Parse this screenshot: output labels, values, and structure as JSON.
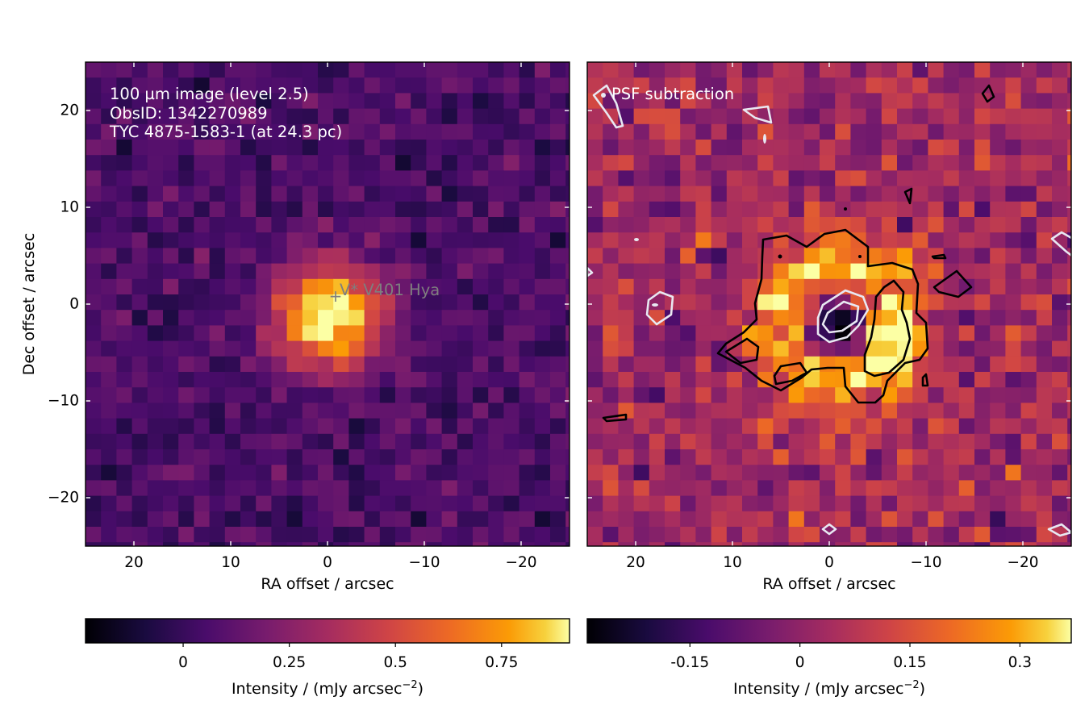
{
  "chart_data": [
    {
      "type": "heatmap",
      "panel": "left",
      "xlabel": "RA offset / arcsec",
      "ylabel": "Dec offset / arcsec",
      "xlim": [
        25,
        -25
      ],
      "ylim": [
        -25,
        25
      ],
      "xticks": [
        20,
        10,
        0,
        -10,
        -20
      ],
      "yticks": [
        20,
        10,
        0,
        -10,
        -20
      ],
      "xtick_labels": [
        "20",
        "10",
        "0",
        "−10",
        "−20"
      ],
      "ytick_labels": [
        "20",
        "10",
        "0",
        "−10",
        "−20"
      ],
      "annotation_lines": [
        "100 µm image (level 2.5)",
        "ObsID: 1342270989",
        "TYC 4875-1583-1 (at 24.3 pc)"
      ],
      "star_marker": {
        "x": -1,
        "y": 0.5,
        "symbol": "+",
        "label": "V* V401 Hya"
      },
      "colormap": "inferno",
      "pixel_size_arcsec": 1.6,
      "source": {
        "peak": 0.9,
        "x": 0,
        "y": -1,
        "sigma_arcsec": 3.8
      },
      "background": {
        "mean": 0.06,
        "noise": 0.07
      },
      "colorbar": {
        "label": "Intensity / (mJy arcsec⁻²)",
        "vmin": -0.23,
        "vmax": 0.91,
        "ticks": [
          0,
          0.25,
          0.5,
          0.75
        ],
        "tick_labels": [
          "0",
          "0.25",
          "0.5",
          "0.75"
        ]
      }
    },
    {
      "type": "heatmap",
      "panel": "right",
      "xlabel": "RA offset / arcsec",
      "ylabel": "",
      "xlim": [
        25,
        -25
      ],
      "ylim": [
        -25,
        25
      ],
      "xticks": [
        20,
        10,
        0,
        -10,
        -20
      ],
      "yticks": [
        20,
        10,
        0,
        -10,
        -20
      ],
      "xtick_labels": [
        "20",
        "10",
        "0",
        "−10",
        "−20"
      ],
      "annotation_lines": [
        "PSF subtraction"
      ],
      "colormap": "inferno",
      "contours": [
        {
          "level": "positive",
          "color": "#000000"
        },
        {
          "level": "negative",
          "color": "#e6e6f0"
        }
      ],
      "features": [
        {
          "kind": "ring",
          "x": -1,
          "y": -2,
          "radius_arcsec": 6.5,
          "peak": 0.36
        },
        {
          "kind": "hole",
          "x": -1,
          "y": -2,
          "value": -0.28
        }
      ],
      "background": {
        "mean": 0.03,
        "noise": 0.07
      },
      "colorbar": {
        "label": "Intensity / (mJy arcsec⁻²)",
        "vmin": -0.29,
        "vmax": 0.37,
        "ticks": [
          -0.15,
          0,
          0.15,
          0.3
        ],
        "tick_labels": [
          "-0.15",
          "0",
          "0.15",
          "0.3"
        ]
      }
    }
  ]
}
